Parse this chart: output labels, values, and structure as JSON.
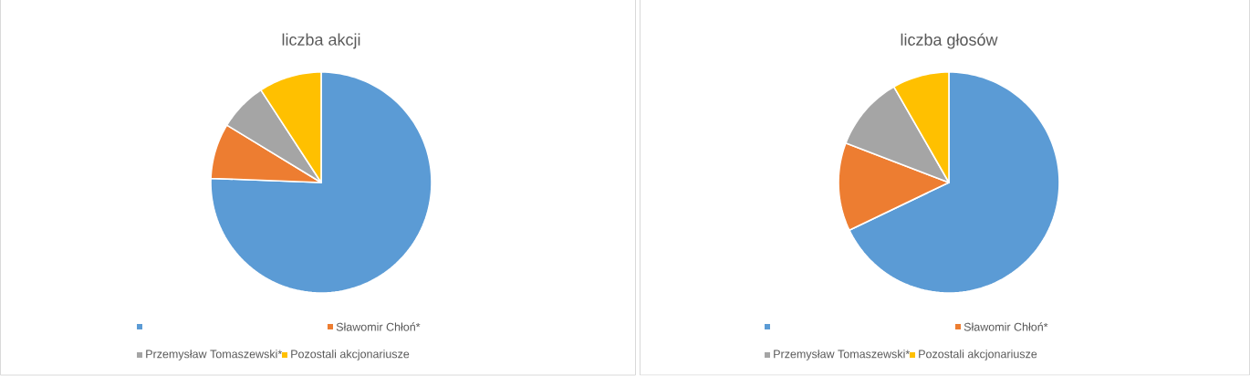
{
  "chart_data": [
    {
      "type": "pie",
      "title": "liczba akcji",
      "categories": [
        null,
        "Sławomir Chłoń*",
        "Przemysław Tomaszewski*",
        "Pozostali akcjonariusze"
      ],
      "values": [
        75.6,
        8.1,
        7.1,
        9.2
      ],
      "colors": [
        "#5b9bd5",
        "#ed7d31",
        "#a5a5a5",
        "#ffc000"
      ],
      "legend": "bottom"
    },
    {
      "type": "pie",
      "title": "liczba głosów",
      "categories": [
        null,
        "Sławomir Chłoń*",
        "Przemysław Tomaszewski*",
        "Pozostali akcjonariusze"
      ],
      "values": [
        67.9,
        12.9,
        10.9,
        8.3
      ],
      "colors": [
        "#5b9bd5",
        "#ed7d31",
        "#a5a5a5",
        "#ffc000"
      ],
      "legend": "bottom"
    }
  ]
}
